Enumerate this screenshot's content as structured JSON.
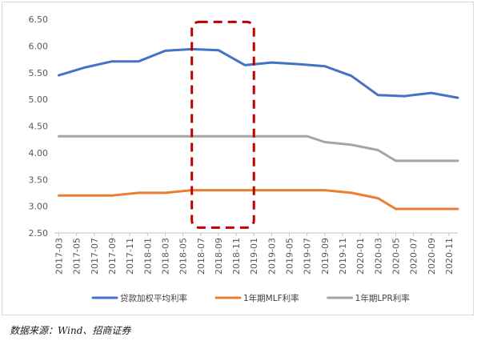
{
  "chart_data": {
    "type": "line",
    "x": [
      "2017-03",
      "2017-05",
      "2017-07",
      "2017-09",
      "2017-11",
      "2018-01",
      "2018-03",
      "2018-05",
      "2018-07",
      "2018-09",
      "2018-11",
      "2019-01",
      "2019-03",
      "2019-05",
      "2019-07",
      "2019-09",
      "2019-11",
      "2020-01",
      "2020-03",
      "2020-05",
      "2020-07",
      "2020-09",
      "2020-11"
    ],
    "x_tick_labels": [
      "2017-03",
      "2017-05",
      "2017-07",
      "2017-09",
      "2017-11",
      "2018-01",
      "2018-03",
      "2018-05",
      "2018-07",
      "2018-09",
      "2018-11",
      "2019-01",
      "2019-03",
      "2019-05",
      "2019-07",
      "2019-09",
      "2019-11",
      "2020-01",
      "2020-03",
      "2020-05",
      "2020-07",
      "2020-09",
      "2020-11"
    ],
    "y_ticks": [
      "2.50",
      "3.00",
      "3.50",
      "4.00",
      "4.50",
      "5.00",
      "5.50",
      "6.00",
      "6.50"
    ],
    "ylim": [
      2.5,
      6.5
    ],
    "grid": false,
    "legend_position": "bottom",
    "title": "",
    "xlabel": "",
    "ylabel": "",
    "series": [
      {
        "name": "贷款加权平均利率",
        "color": "#4472C4",
        "points": [
          {
            "x": "2017-03",
            "y": 5.45
          },
          {
            "x": "2017-06",
            "y": 5.6
          },
          {
            "x": "2017-09",
            "y": 5.71
          },
          {
            "x": "2017-12",
            "y": 5.71
          },
          {
            "x": "2018-03",
            "y": 5.91
          },
          {
            "x": "2018-06",
            "y": 5.94
          },
          {
            "x": "2018-09",
            "y": 5.92
          },
          {
            "x": "2018-12",
            "y": 5.64
          },
          {
            "x": "2019-03",
            "y": 5.69
          },
          {
            "x": "2019-06",
            "y": 5.66
          },
          {
            "x": "2019-09",
            "y": 5.62
          },
          {
            "x": "2019-12",
            "y": 5.44
          },
          {
            "x": "2020-03",
            "y": 5.08
          },
          {
            "x": "2020-06",
            "y": 5.06
          },
          {
            "x": "2020-09",
            "y": 5.12
          },
          {
            "x": "2020-12",
            "y": 5.03
          }
        ]
      },
      {
        "name": "1年期MLF利率",
        "color": "#ED7D31",
        "points": [
          {
            "x": "2017-03",
            "y": 3.2
          },
          {
            "x": "2017-09",
            "y": 3.2
          },
          {
            "x": "2017-12",
            "y": 3.25
          },
          {
            "x": "2018-03",
            "y": 3.25
          },
          {
            "x": "2018-06",
            "y": 3.3
          },
          {
            "x": "2019-09",
            "y": 3.3
          },
          {
            "x": "2019-12",
            "y": 3.25
          },
          {
            "x": "2020-03",
            "y": 3.15
          },
          {
            "x": "2020-05",
            "y": 2.95
          },
          {
            "x": "2020-12",
            "y": 2.95
          }
        ]
      },
      {
        "name": "1年期LPR利率",
        "color": "#A5A5A5",
        "points": [
          {
            "x": "2017-03",
            "y": 4.31
          },
          {
            "x": "2018-03",
            "y": 4.31
          },
          {
            "x": "2018-06",
            "y": 4.31
          },
          {
            "x": "2019-07",
            "y": 4.31
          },
          {
            "x": "2019-09",
            "y": 4.2
          },
          {
            "x": "2019-12",
            "y": 4.15
          },
          {
            "x": "2020-03",
            "y": 4.05
          },
          {
            "x": "2020-05",
            "y": 3.85
          },
          {
            "x": "2020-12",
            "y": 3.85
          }
        ]
      }
    ],
    "annotations": [
      {
        "type": "dashed-rectangle",
        "color": "#C00000",
        "x_from": "2018-06",
        "x_to": "2019-01",
        "y_from": 2.6,
        "y_to": 6.45
      }
    ]
  },
  "source_note": "数据来源：Wind、招商证券"
}
